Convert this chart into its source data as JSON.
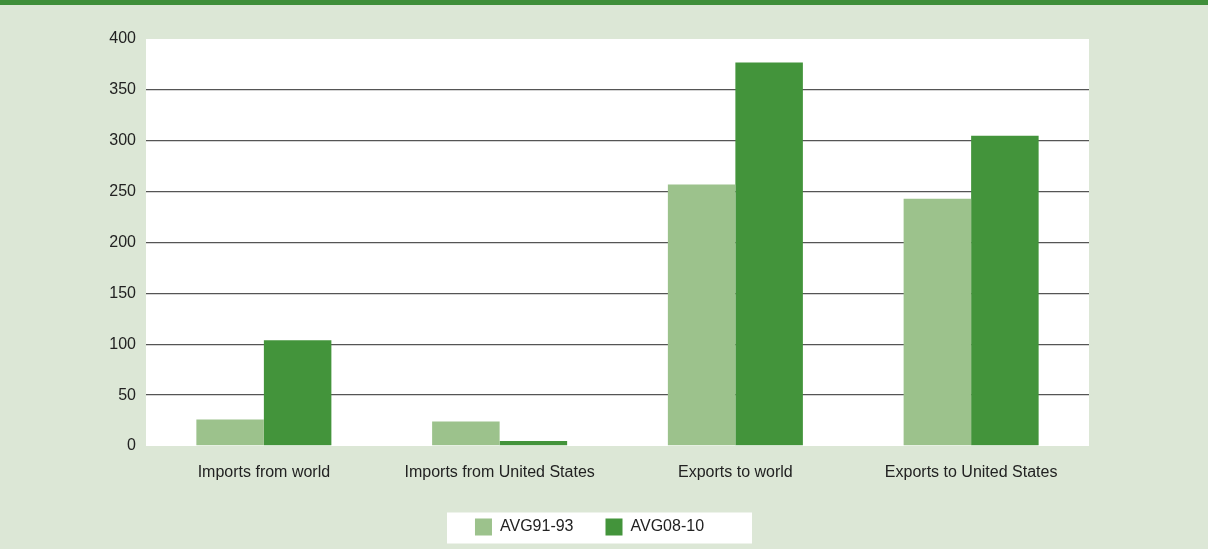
{
  "chart_data": {
    "type": "bar",
    "categories": [
      "Imports from world",
      "Imports from United States",
      "Exports to world",
      "Exports to United States"
    ],
    "series": [
      {
        "name": "AVG91-93",
        "color": "#9cc28c",
        "values": [
          26,
          24,
          257,
          243
        ]
      },
      {
        "name": "AVG08-10",
        "color": "#43943b",
        "values": [
          104,
          5,
          377,
          305
        ]
      }
    ],
    "ylim": [
      0,
      400
    ],
    "yticks": [
      0,
      50,
      100,
      150,
      200,
      250,
      300,
      350,
      400
    ],
    "grid": "y",
    "legend": "bottom"
  }
}
